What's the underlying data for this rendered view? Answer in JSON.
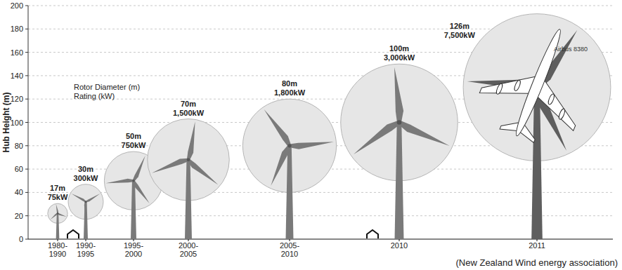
{
  "chart_data": {
    "type": "bubble",
    "y_label": "Hub Height (m)",
    "categories": [
      "1980-1990",
      "1990-1995",
      "1995-2000",
      "2000-2005",
      "2005-2010",
      "2010",
      "2011"
    ],
    "values": [
      22,
      32,
      50,
      68,
      80,
      100,
      130
    ],
    "rotor_diameter": [
      17,
      30,
      50,
      70,
      80,
      100,
      126
    ],
    "rotor_diameter_labels": [
      "17m",
      "30m",
      "50m",
      "70m",
      "80m",
      "100m",
      "126m"
    ],
    "rating_labels": [
      "75kW",
      "300kW",
      "750kW",
      "1,500kW",
      "1,800kW",
      "3,000kW",
      "7,500kW"
    ],
    "legend_text": [
      "Rotor Diameter (m)",
      "Rating (kW)"
    ],
    "aircraft_label": "Airbus 8380",
    "source": "(New Zealand Wind energy association)",
    "ylim": [
      0,
      200
    ],
    "yticks": [
      0,
      20,
      40,
      60,
      80,
      100,
      120,
      140,
      160,
      180,
      200
    ],
    "grid": true
  }
}
